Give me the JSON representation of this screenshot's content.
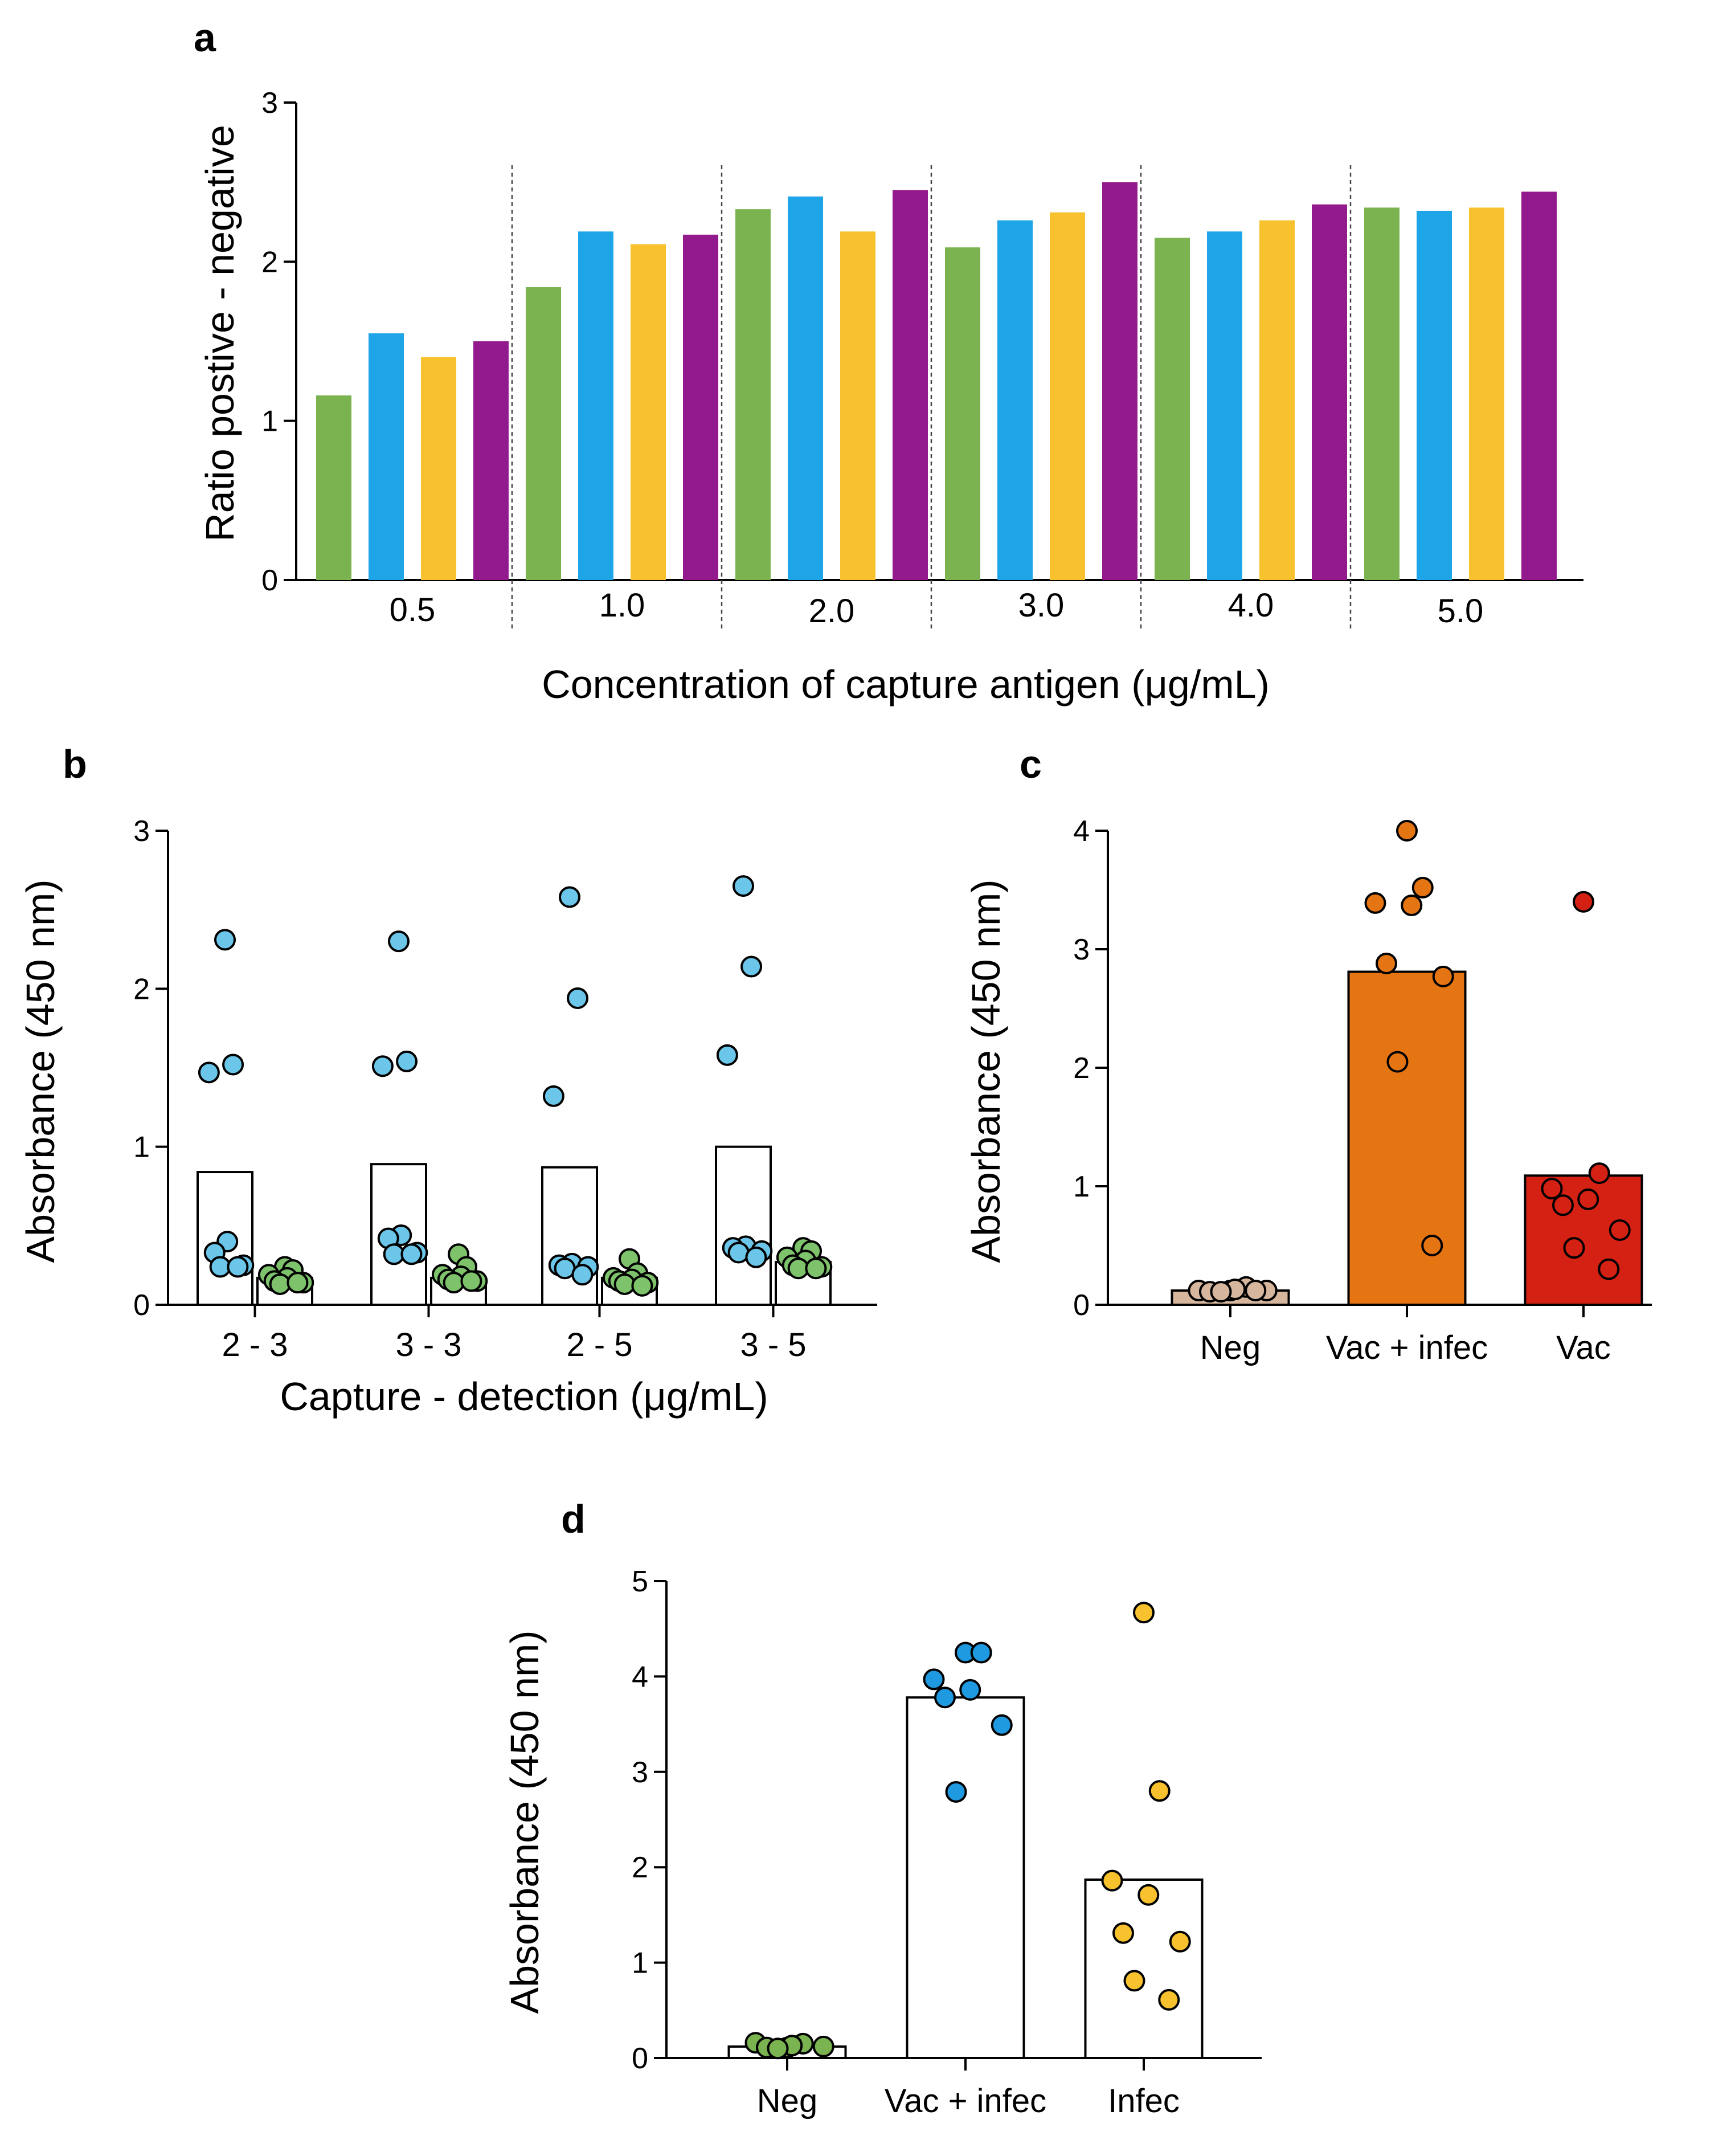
{
  "colors": {
    "green": "#7ab34f",
    "blue": "#1ea5e8",
    "yellow": "#f7c22e",
    "purple": "#931a8c",
    "lightblue": "#6cc6ea",
    "lightgreen": "#7ec36c",
    "tan": "#d6b79e",
    "orange": "#e57413",
    "red": "#d42113",
    "dotblue": "#1f9ae0",
    "dotyellow": "#f7c22e",
    "dotgreen": "#7ab34f"
  },
  "chart_data": [
    {
      "panel": "a",
      "type": "bar",
      "title": "",
      "xlabel": "Concentration of capture antigen (μg/mL)",
      "ylabel": "Ratio postive - negative",
      "ylim": [
        0,
        3
      ],
      "yticks": [
        "0",
        "1",
        "2",
        "3"
      ],
      "categories": [
        "0.5",
        "1.0",
        "2.0",
        "3.0",
        "4.0",
        "5.0"
      ],
      "series": [
        {
          "name": "series 1",
          "color_key": "green",
          "values": [
            1.16,
            1.84,
            2.33,
            2.09,
            2.15,
            2.34
          ]
        },
        {
          "name": "series 2",
          "color_key": "blue",
          "values": [
            1.55,
            2.19,
            2.41,
            2.26,
            2.19,
            2.32
          ]
        },
        {
          "name": "series 3",
          "color_key": "yellow",
          "values": [
            1.4,
            2.11,
            2.19,
            2.31,
            2.26,
            2.34
          ]
        },
        {
          "name": "series 4",
          "color_key": "purple",
          "values": [
            1.5,
            2.17,
            2.45,
            2.5,
            2.36,
            2.44
          ]
        }
      ]
    },
    {
      "panel": "b",
      "type": "scatter",
      "title": "",
      "xlabel": "Capture - detection (μg/mL)",
      "ylabel": "Absorbance (450 nm)",
      "ylim": [
        0,
        3
      ],
      "yticks": [
        "0",
        "1",
        "2",
        "3"
      ],
      "categories": [
        "2 - 3",
        "3 - 3",
        "2 - 5",
        "3 - 5"
      ],
      "groups": [
        {
          "category": "2 - 3",
          "color_key": "lightblue",
          "mean": 0.84,
          "points": [
            2.31,
            1.52,
            1.47,
            0.4,
            0.33,
            0.25,
            0.24,
            0.24
          ]
        },
        {
          "category": "2 - 3",
          "color_key": "lightgreen",
          "mean": 0.17,
          "points": [
            0.24,
            0.22,
            0.19,
            0.17,
            0.15,
            0.14,
            0.13,
            0.14
          ]
        },
        {
          "category": "3 - 3",
          "color_key": "lightblue",
          "mean": 0.89,
          "points": [
            2.3,
            1.54,
            1.51,
            0.44,
            0.42,
            0.33,
            0.32,
            0.32
          ]
        },
        {
          "category": "3 - 3",
          "color_key": "lightgreen",
          "mean": 0.17,
          "points": [
            0.32,
            0.24,
            0.19,
            0.18,
            0.16,
            0.15,
            0.14,
            0.15
          ]
        },
        {
          "category": "2 - 5",
          "color_key": "lightblue",
          "mean": 0.87,
          "points": [
            2.58,
            1.94,
            1.32,
            0.26,
            0.25,
            0.24,
            0.23,
            0.19
          ]
        },
        {
          "category": "2 - 5",
          "color_key": "lightgreen",
          "mean": 0.17,
          "points": [
            0.29,
            0.2,
            0.17,
            0.16,
            0.15,
            0.14,
            0.13,
            0.12
          ]
        },
        {
          "category": "3 - 5",
          "color_key": "lightblue",
          "mean": 1.0,
          "points": [
            2.65,
            2.14,
            1.58,
            0.37,
            0.36,
            0.34,
            0.33,
            0.3
          ]
        },
        {
          "category": "3 - 5",
          "color_key": "lightgreen",
          "mean": 0.27,
          "points": [
            0.36,
            0.34,
            0.3,
            0.28,
            0.25,
            0.24,
            0.23,
            0.23
          ]
        }
      ]
    },
    {
      "panel": "c",
      "type": "scatter",
      "title": "",
      "xlabel": "",
      "ylabel": "Absorbance (450 nm)",
      "ylim": [
        0,
        4
      ],
      "yticks": [
        "0",
        "1",
        "2",
        "3",
        "4"
      ],
      "categories": [
        "Neg",
        "Vac + infec",
        "Vac"
      ],
      "groups": [
        {
          "category": "Neg",
          "color_key": "tan",
          "fill_key": "tan",
          "mean": 0.12,
          "points": [
            0.12,
            0.15,
            0.12,
            0.13,
            0.11,
            0.12,
            0.11,
            0.12
          ]
        },
        {
          "category": "Vac + infec",
          "color_key": "orange",
          "fill_key": "orange",
          "mean": 2.81,
          "points": [
            4.0,
            3.52,
            3.39,
            3.37,
            2.88,
            2.77,
            2.05,
            0.5
          ]
        },
        {
          "category": "Vac",
          "color_key": "red",
          "fill_key": "red",
          "mean": 1.09,
          "points": [
            3.4,
            1.11,
            0.98,
            0.89,
            0.84,
            0.63,
            0.48,
            0.3
          ]
        }
      ]
    },
    {
      "panel": "d",
      "type": "scatter",
      "title": "",
      "xlabel": "",
      "ylabel": "Absorbance (450 nm)",
      "ylim": [
        0,
        5
      ],
      "yticks": [
        "0",
        "1",
        "2",
        "3",
        "4",
        "5"
      ],
      "categories": [
        "Neg",
        "Vac + infec",
        "Infec"
      ],
      "groups": [
        {
          "category": "Neg",
          "color_key": "dotgreen",
          "mean": 0.12,
          "points": [
            0.11,
            0.15,
            0.16,
            0.13,
            0.11,
            0.12,
            0.1
          ]
        },
        {
          "category": "Vac + infec",
          "color_key": "dotblue",
          "mean": 3.78,
          "points": [
            4.25,
            4.25,
            3.97,
            3.86,
            3.78,
            3.49,
            2.79
          ]
        },
        {
          "category": "Infec",
          "color_key": "dotyellow",
          "mean": 1.87,
          "points": [
            4.67,
            2.8,
            1.86,
            1.71,
            1.31,
            1.22,
            0.81,
            0.61
          ]
        }
      ]
    }
  ],
  "panels": {
    "a": "a",
    "b": "b",
    "c": "c",
    "d": "d"
  }
}
